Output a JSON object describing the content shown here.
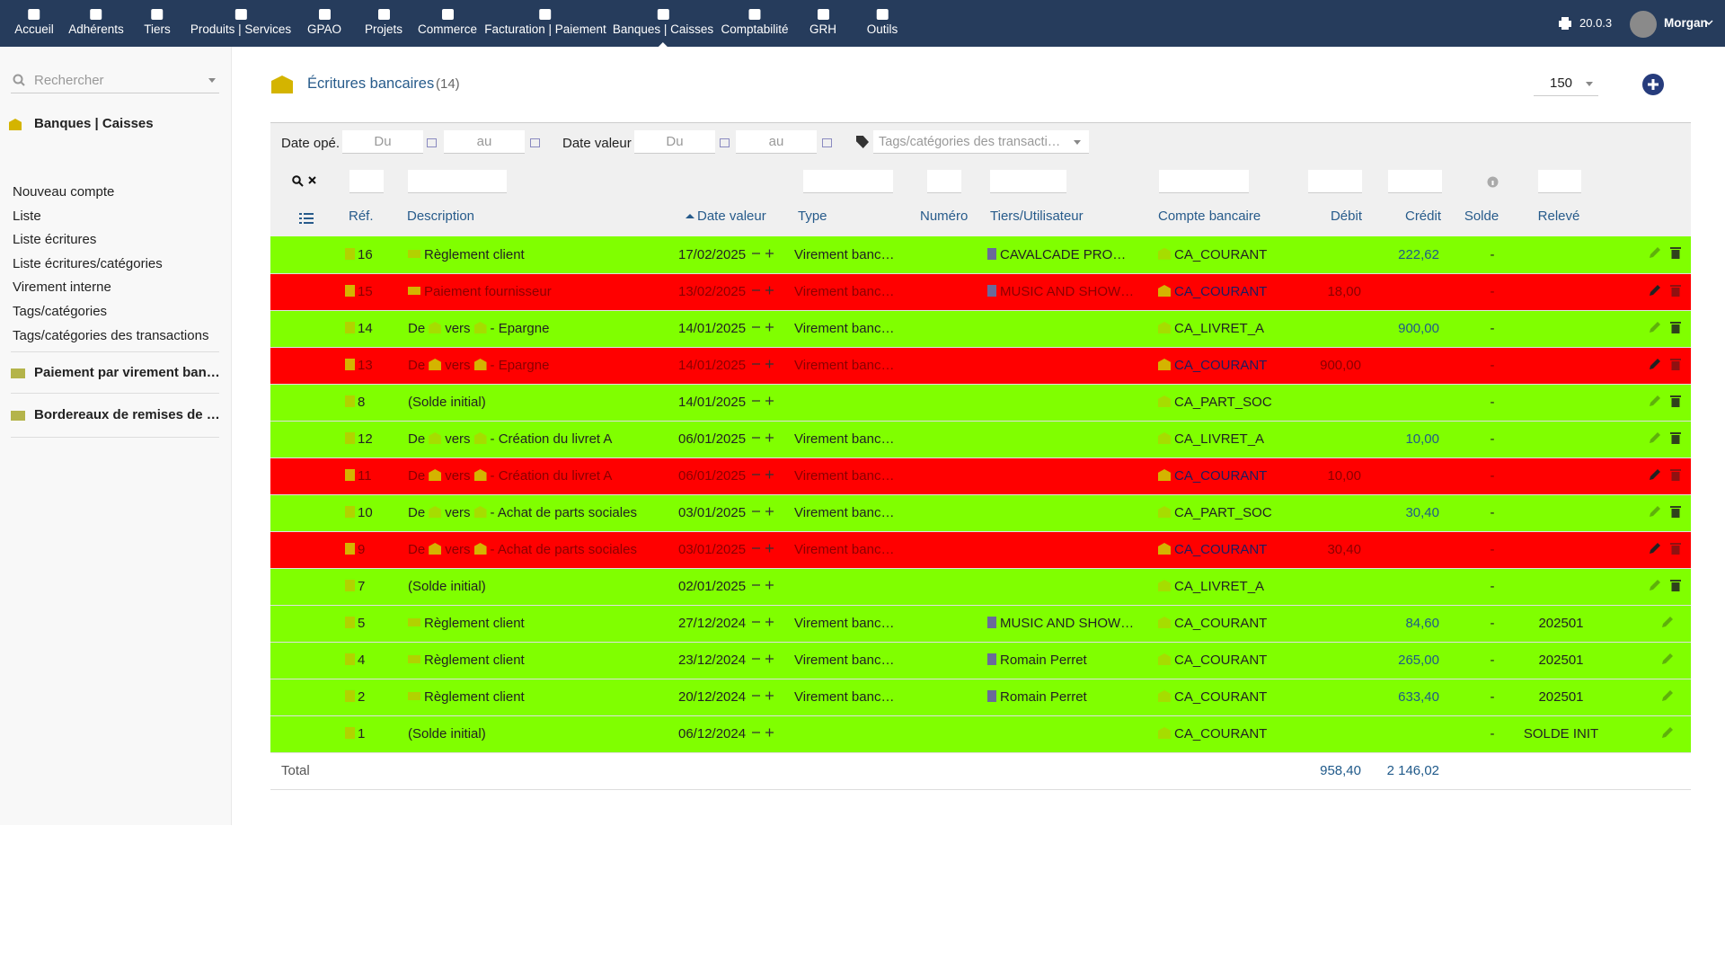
{
  "nav": {
    "items": [
      "Accueil",
      "Adhérents",
      "Tiers",
      "Produits | Services",
      "GPAO",
      "Projets",
      "Commerce",
      "Facturation | Paiement",
      "Banques | Caisses",
      "Comptabilité",
      "GRH",
      "Outils"
    ],
    "version": "20.0.3",
    "user": "Morgan"
  },
  "sidebar": {
    "search": "Rechercher",
    "section": "Banques | Caisses",
    "items": [
      "Nouveau compte",
      "Liste",
      "Liste écritures",
      "Liste écritures/catégories",
      "Virement interne",
      "Tags/catégories",
      "Tags/catégories des transactions"
    ],
    "extra": [
      "Paiement par virement ban…",
      "Bordereaux de remises de …"
    ]
  },
  "header": {
    "title": "Écritures bancaires",
    "count": "(14)",
    "per_page": "150"
  },
  "filters": {
    "date_op": "Date opé.",
    "from1": "Du",
    "to1": "au",
    "date_val": "Date valeur",
    "from2": "Du",
    "to2": "au",
    "tags": "Tags/catégories des transacti…"
  },
  "table": {
    "columns": [
      "Réf.",
      "Description",
      "Date valeur",
      "Type",
      "Numéro",
      "Tiers/Utilisateur",
      "Compte bancaire",
      "Débit",
      "Crédit",
      "Solde",
      "Relevé"
    ],
    "rows": [
      {
        "status": "green",
        "ref": "16",
        "desc": [
          "Règlement client"
        ],
        "date": "17/02/2025",
        "type": "Virement banc…",
        "tiers": "CAVALCADE PRO…",
        "account": "CA_COURANT",
        "credit": "222,62",
        "solde": "-"
      },
      {
        "status": "red",
        "ref": "15",
        "desc": [
          "Paiement fournisseur"
        ],
        "date": "13/02/2025",
        "type": "Virement banc…",
        "tiers": "MUSIC AND SHOW…",
        "account": "CA_COURANT",
        "debit": "18,00",
        "solde": "-"
      },
      {
        "status": "green",
        "ref": "14",
        "desc": [
          "De",
          "vers",
          "- Epargne"
        ],
        "date": "14/01/2025",
        "type": "Virement banc…",
        "account": "CA_LIVRET_A",
        "credit": "900,00",
        "solde": "-"
      },
      {
        "status": "red",
        "ref": "13",
        "desc": [
          "De",
          "vers",
          "- Epargne"
        ],
        "date": "14/01/2025",
        "type": "Virement banc…",
        "account": "CA_COURANT",
        "debit": "900,00",
        "solde": "-"
      },
      {
        "status": "green",
        "ref": "8",
        "desc": [
          "(Solde initial)"
        ],
        "date": "14/01/2025",
        "account": "CA_PART_SOC",
        "solde": "-"
      },
      {
        "status": "green",
        "ref": "12",
        "desc": [
          "De",
          "vers",
          "- Création du livret A"
        ],
        "date": "06/01/2025",
        "type": "Virement banc…",
        "account": "CA_LIVRET_A",
        "credit": "10,00",
        "solde": "-"
      },
      {
        "status": "red",
        "ref": "11",
        "desc": [
          "De",
          "vers",
          "- Création du livret A"
        ],
        "date": "06/01/2025",
        "type": "Virement banc…",
        "account": "CA_COURANT",
        "debit": "10,00",
        "solde": "-"
      },
      {
        "status": "green",
        "ref": "10",
        "desc": [
          "De",
          "vers",
          "- Achat de parts sociales"
        ],
        "date": "03/01/2025",
        "type": "Virement banc…",
        "account": "CA_PART_SOC",
        "credit": "30,40",
        "solde": "-"
      },
      {
        "status": "red",
        "ref": "9",
        "desc": [
          "De",
          "vers",
          "- Achat de parts sociales"
        ],
        "date": "03/01/2025",
        "type": "Virement banc…",
        "account": "CA_COURANT",
        "debit": "30,40",
        "solde": "-"
      },
      {
        "status": "green",
        "ref": "7",
        "desc": [
          "(Solde initial)"
        ],
        "date": "02/01/2025",
        "account": "CA_LIVRET_A",
        "solde": "-"
      },
      {
        "status": "green",
        "ref": "5",
        "desc": [
          "Règlement client"
        ],
        "date": "27/12/2024",
        "type": "Virement banc…",
        "tiers": "MUSIC AND SHOW…",
        "account": "CA_COURANT",
        "credit": "84,60",
        "solde": "-",
        "releve": "202501"
      },
      {
        "status": "green",
        "ref": "4",
        "desc": [
          "Règlement client"
        ],
        "date": "23/12/2024",
        "type": "Virement banc…",
        "tiers": "Romain Perret",
        "account": "CA_COURANT",
        "credit": "265,00",
        "solde": "-",
        "releve": "202501"
      },
      {
        "status": "green",
        "ref": "2",
        "desc": [
          "Règlement client"
        ],
        "date": "20/12/2024",
        "type": "Virement banc…",
        "tiers": "Romain Perret",
        "account": "CA_COURANT",
        "credit": "633,40",
        "solde": "-",
        "releve": "202501"
      },
      {
        "status": "green",
        "ref": "1",
        "desc": [
          "(Solde initial)"
        ],
        "date": "06/12/2024",
        "account": "CA_COURANT",
        "solde": "-",
        "releve": "SOLDE INIT"
      }
    ],
    "total": {
      "label": "Total",
      "debit": "958,40",
      "credit": "2 146,02"
    }
  }
}
